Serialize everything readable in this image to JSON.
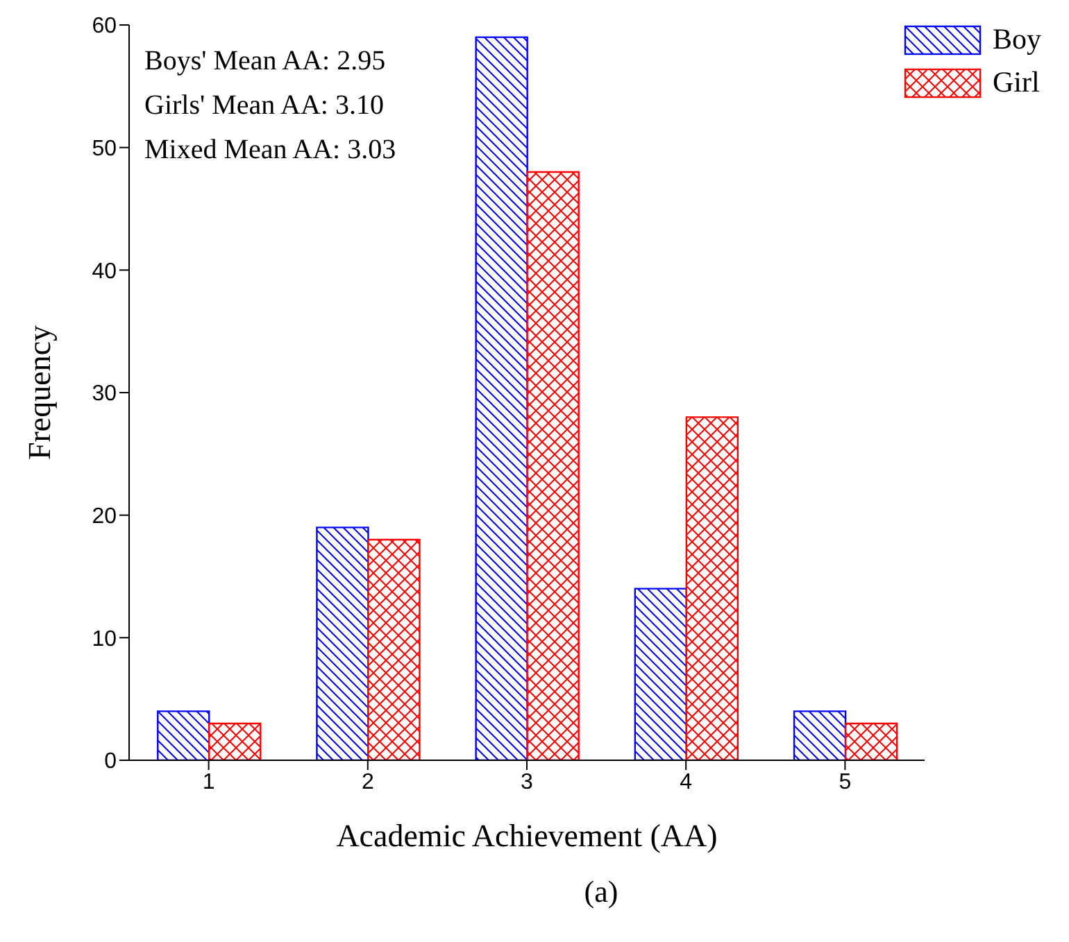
{
  "chart_data": {
    "type": "bar",
    "xlabel": "Academic Achievement (AA)",
    "ylabel": "Frequency",
    "categories": [
      "1",
      "2",
      "3",
      "4",
      "5"
    ],
    "series": [
      {
        "name": "Boy",
        "color": "#0000ff",
        "values": [
          4,
          19,
          59,
          14,
          4
        ]
      },
      {
        "name": "Girl",
        "color": "#ff0000",
        "values": [
          3,
          18,
          48,
          28,
          3
        ]
      }
    ],
    "ylim": [
      0,
      60
    ],
    "yticks": [
      0,
      10,
      20,
      30,
      40,
      50,
      60
    ],
    "grid": false,
    "legend": "top right",
    "annotations": [
      "Boys' Mean AA: 2.95",
      "Girls' Mean AA: 3.10",
      "Mixed Mean AA: 3.03",
      "(a)"
    ]
  }
}
